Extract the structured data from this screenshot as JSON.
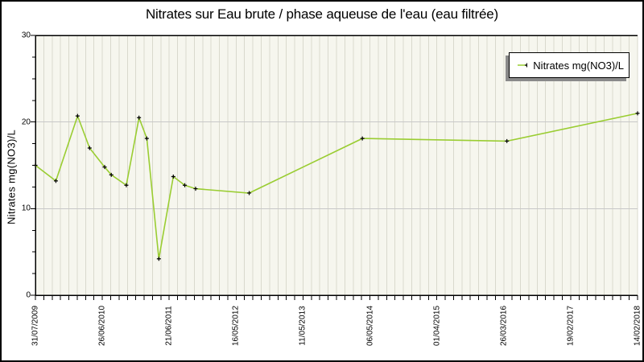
{
  "chart_data": {
    "type": "line",
    "title": "Nitrates sur Eau brute / phase aqueuse de l'eau (eau filtrée)",
    "ylabel": "Nitrates mg(NO3)/L",
    "xlabel": "",
    "ylim": [
      0,
      30
    ],
    "y_major_ticks": [
      0,
      10,
      20,
      30
    ],
    "y_minor_step": 2.5,
    "x_tick_labels": [
      "31/07/2009",
      "26/06/2010",
      "21/06/2011",
      "16/05/2012",
      "11/05/2013",
      "06/05/2014",
      "01/04/2015",
      "26/03/2016",
      "19/02/2017",
      "14/02/2018"
    ],
    "x_minor_divisions_per_major": 8,
    "grid": "vertical minor gridlines on, horizontal gridlines at major y ticks",
    "legend": {
      "label": "Nitrates mg(NO3)/L",
      "position": "top-right"
    },
    "style": {
      "line_color": "#9ACD32",
      "marker": "black-plus",
      "plot_bg": "#f6f6ee",
      "grid_v_color": "#d9d9cd",
      "grid_h_color": "#c8c8c8",
      "axis_color": "#000000",
      "legend_shadow": "#8a8a8a"
    },
    "series": [
      {
        "name": "Nitrates mg(NO3)/L",
        "points": [
          {
            "x_frac": 0.0,
            "value": 15.0,
            "date_est": "2009-07-31"
          },
          {
            "x_frac": 0.034,
            "value": 13.2,
            "date_est": "2009-11"
          },
          {
            "x_frac": 0.07,
            "value": 20.7,
            "date_est": "2010-03"
          },
          {
            "x_frac": 0.09,
            "value": 17.0,
            "date_est": "2010-05"
          },
          {
            "x_frac": 0.115,
            "value": 14.8,
            "date_est": "2010-07"
          },
          {
            "x_frac": 0.126,
            "value": 13.9,
            "date_est": "2010-08"
          },
          {
            "x_frac": 0.151,
            "value": 12.7,
            "date_est": "2010-11"
          },
          {
            "x_frac": 0.172,
            "value": 20.5,
            "date_est": "2011-01"
          },
          {
            "x_frac": 0.185,
            "value": 18.1,
            "date_est": "2011-03"
          },
          {
            "x_frac": 0.205,
            "value": 4.2,
            "date_est": "2011-05"
          },
          {
            "x_frac": 0.229,
            "value": 13.7,
            "date_est": "2011-07"
          },
          {
            "x_frac": 0.248,
            "value": 12.7,
            "date_est": "2011-09"
          },
          {
            "x_frac": 0.266,
            "value": 12.3,
            "date_est": "2011-11"
          },
          {
            "x_frac": 0.355,
            "value": 11.8,
            "date_est": "2012-08"
          },
          {
            "x_frac": 0.543,
            "value": 18.1,
            "date_est": "2014-03"
          },
          {
            "x_frac": 0.783,
            "value": 17.8,
            "date_est": "2016-04"
          },
          {
            "x_frac": 1.0,
            "value": 21.0,
            "date_est": "2018-02-14"
          }
        ]
      }
    ]
  }
}
